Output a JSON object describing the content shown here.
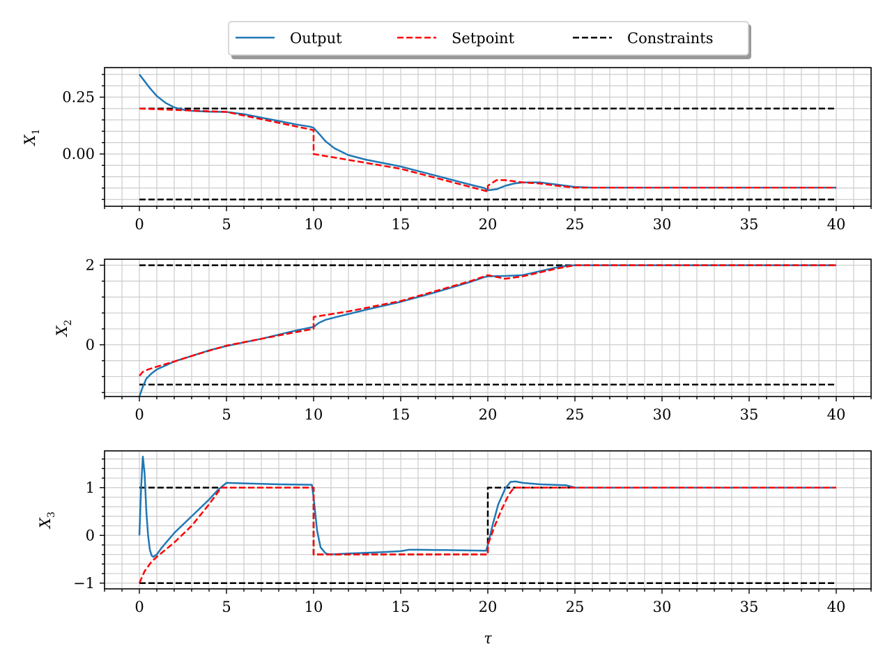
{
  "legend": {
    "output": "Output",
    "setpoint": "Setpoint",
    "constraints": "Constraints"
  },
  "colors": {
    "output": "#1f77b4",
    "setpoint": "#ff0000",
    "constraints": "#000000",
    "grid": "#cccccc"
  },
  "chart_data": [
    {
      "type": "line",
      "ylabel": "X_1",
      "xlabel": "",
      "xlim": [
        -2,
        42
      ],
      "ylim": [
        -0.23,
        0.38
      ],
      "xticks": [
        0,
        5,
        10,
        15,
        20,
        25,
        30,
        35,
        40
      ],
      "xtick_labels": [
        "0",
        "5",
        "10",
        "15",
        "20",
        "25",
        "30",
        "35",
        "40"
      ],
      "yticks": [
        0.0,
        0.25
      ],
      "ytick_labels": [
        "0.00",
        "0.25"
      ],
      "grid": true,
      "series": [
        {
          "role": "output",
          "x": [
            0,
            0.3,
            0.6,
            1.0,
            1.5,
            2.0,
            2.5,
            3.0,
            4.0,
            5.0,
            6.0,
            7.0,
            8.0,
            9.0,
            9.8,
            10.0,
            10.3,
            10.7,
            11.2,
            12.0,
            13.0,
            14.0,
            15.0,
            16.0,
            17.0,
            18.0,
            19.0,
            19.8,
            20.0,
            20.5,
            21.0,
            21.5,
            22.0,
            23.0,
            24.0,
            25.0,
            26.0,
            30.0,
            35.0,
            40.0
          ],
          "y": [
            0.35,
            0.32,
            0.29,
            0.255,
            0.225,
            0.205,
            0.195,
            0.19,
            0.186,
            0.185,
            0.175,
            0.16,
            0.145,
            0.13,
            0.12,
            0.115,
            0.09,
            0.055,
            0.025,
            -0.005,
            -0.025,
            -0.04,
            -0.055,
            -0.075,
            -0.095,
            -0.115,
            -0.135,
            -0.15,
            -0.16,
            -0.155,
            -0.14,
            -0.13,
            -0.125,
            -0.125,
            -0.135,
            -0.145,
            -0.148,
            -0.148,
            -0.148,
            -0.148
          ]
        },
        {
          "role": "setpoint",
          "x": [
            0,
            5,
            10,
            10,
            15,
            20,
            20,
            20.5,
            21,
            21.5,
            22,
            23,
            24,
            25,
            26,
            30,
            35,
            40
          ],
          "y": [
            0.2,
            0.185,
            0.105,
            0.0,
            -0.065,
            -0.165,
            -0.14,
            -0.115,
            -0.115,
            -0.12,
            -0.125,
            -0.13,
            -0.14,
            -0.148,
            -0.148,
            -0.148,
            -0.148,
            -0.148
          ]
        },
        {
          "role": "constraints",
          "x": [
            0,
            40
          ],
          "y": [
            0.2,
            0.2
          ]
        },
        {
          "role": "constraints",
          "x": [
            0,
            40
          ],
          "y": [
            -0.2,
            -0.2
          ]
        }
      ]
    },
    {
      "type": "line",
      "ylabel": "X_2",
      "xlabel": "",
      "xlim": [
        -2,
        42
      ],
      "ylim": [
        -1.3,
        2.15
      ],
      "xticks": [
        0,
        5,
        10,
        15,
        20,
        25,
        30,
        35,
        40
      ],
      "xtick_labels": [
        "0",
        "5",
        "10",
        "15",
        "20",
        "25",
        "30",
        "35",
        "40"
      ],
      "yticks": [
        0,
        2
      ],
      "ytick_labels": [
        "0",
        "2"
      ],
      "grid": true,
      "series": [
        {
          "role": "output",
          "x": [
            0,
            0.2,
            0.4,
            0.7,
            1.0,
            1.5,
            2.0,
            3.0,
            4.0,
            5.0,
            7.0,
            9.0,
            10.0,
            10.3,
            10.7,
            11.5,
            13.0,
            15.0,
            17.0,
            19.0,
            19.8,
            20.0,
            21.0,
            22.0,
            23.0,
            24.0,
            24.7,
            25.0,
            30.0,
            35.0,
            40.0
          ],
          "y": [
            -1.3,
            -1.05,
            -0.85,
            -0.72,
            -0.62,
            -0.52,
            -0.42,
            -0.28,
            -0.14,
            -0.03,
            0.15,
            0.36,
            0.45,
            0.55,
            0.63,
            0.72,
            0.88,
            1.08,
            1.32,
            1.58,
            1.7,
            1.72,
            1.73,
            1.75,
            1.85,
            1.95,
            1.99,
            2.0,
            2.0,
            2.0,
            2.0
          ]
        },
        {
          "role": "setpoint",
          "x": [
            0,
            0.2,
            0.5,
            1.0,
            2.0,
            3.0,
            5.0,
            7.0,
            9.0,
            10.0,
            10.0,
            12.0,
            15.0,
            17.0,
            19.0,
            20.0,
            21.0,
            22.0,
            23.0,
            24.0,
            25.0,
            30.0,
            35.0,
            40.0
          ],
          "y": [
            -0.78,
            -0.68,
            -0.62,
            -0.55,
            -0.42,
            -0.28,
            -0.02,
            0.15,
            0.32,
            0.4,
            0.7,
            0.84,
            1.1,
            1.35,
            1.6,
            1.75,
            1.66,
            1.72,
            1.82,
            1.92,
            2.0,
            2.0,
            2.0,
            2.0
          ]
        },
        {
          "role": "constraints",
          "x": [
            0,
            40
          ],
          "y": [
            2.0,
            2.0
          ]
        },
        {
          "role": "constraints",
          "x": [
            0,
            40
          ],
          "y": [
            -1.0,
            -1.0
          ]
        }
      ]
    },
    {
      "type": "line",
      "ylabel": "X_3",
      "xlabel": "τ",
      "xlim": [
        -2,
        42
      ],
      "ylim": [
        -1.12,
        1.77
      ],
      "xticks": [
        0,
        5,
        10,
        15,
        20,
        25,
        30,
        35,
        40
      ],
      "xtick_labels": [
        "0",
        "5",
        "10",
        "15",
        "20",
        "25",
        "30",
        "35",
        "40"
      ],
      "yticks": [
        -1,
        0,
        1
      ],
      "ytick_labels": [
        "−1",
        "0",
        "1"
      ],
      "grid": true,
      "series": [
        {
          "role": "output",
          "x": [
            0,
            0.1,
            0.2,
            0.3,
            0.4,
            0.5,
            0.6,
            0.7,
            0.8,
            1.0,
            1.3,
            2.0,
            3.0,
            4.0,
            4.5,
            5.0,
            6.0,
            8.0,
            9.9,
            10.0,
            10.2,
            10.4,
            10.7,
            11.0,
            12.0,
            14.0,
            15.0,
            15.5,
            16.0,
            18.0,
            19.9,
            20.0,
            20.3,
            20.6,
            21.0,
            21.3,
            21.6,
            22.0,
            23.0,
            24.5,
            25.0,
            30.0,
            35.0,
            40.0
          ],
          "y": [
            0,
            1.0,
            1.65,
            1.3,
            0.5,
            0.0,
            -0.3,
            -0.42,
            -0.45,
            -0.4,
            -0.25,
            0.05,
            0.4,
            0.75,
            0.95,
            1.1,
            1.09,
            1.07,
            1.06,
            0.8,
            0.1,
            -0.25,
            -0.38,
            -0.4,
            -0.38,
            -0.35,
            -0.33,
            -0.3,
            -0.3,
            -0.31,
            -0.32,
            -0.2,
            0.25,
            0.65,
            0.98,
            1.12,
            1.13,
            1.1,
            1.07,
            1.05,
            1.0,
            1.0,
            1.0,
            1.0
          ]
        },
        {
          "role": "setpoint",
          "x": [
            0,
            0.3,
            0.7,
            1.0,
            2.0,
            3.0,
            4.0,
            4.7,
            5.0,
            10.0,
            10.0,
            20.0,
            20.0,
            20.4,
            20.8,
            21.2,
            21.5,
            25.0,
            30.0,
            35.0,
            40.0
          ],
          "y": [
            -1.0,
            -0.75,
            -0.55,
            -0.45,
            -0.15,
            0.2,
            0.65,
            1.0,
            1.0,
            1.0,
            -0.4,
            -0.4,
            -0.2,
            0.2,
            0.55,
            0.85,
            1.0,
            1.0,
            1.0,
            1.0,
            1.0
          ]
        },
        {
          "role": "constraints",
          "x": [
            0,
            10,
            10,
            20,
            20,
            40
          ],
          "y": [
            1.0,
            1.0,
            -0.4,
            -0.4,
            1.0,
            1.0
          ]
        },
        {
          "role": "constraints",
          "x": [
            0,
            40
          ],
          "y": [
            -1.0,
            -1.0
          ]
        }
      ]
    }
  ]
}
